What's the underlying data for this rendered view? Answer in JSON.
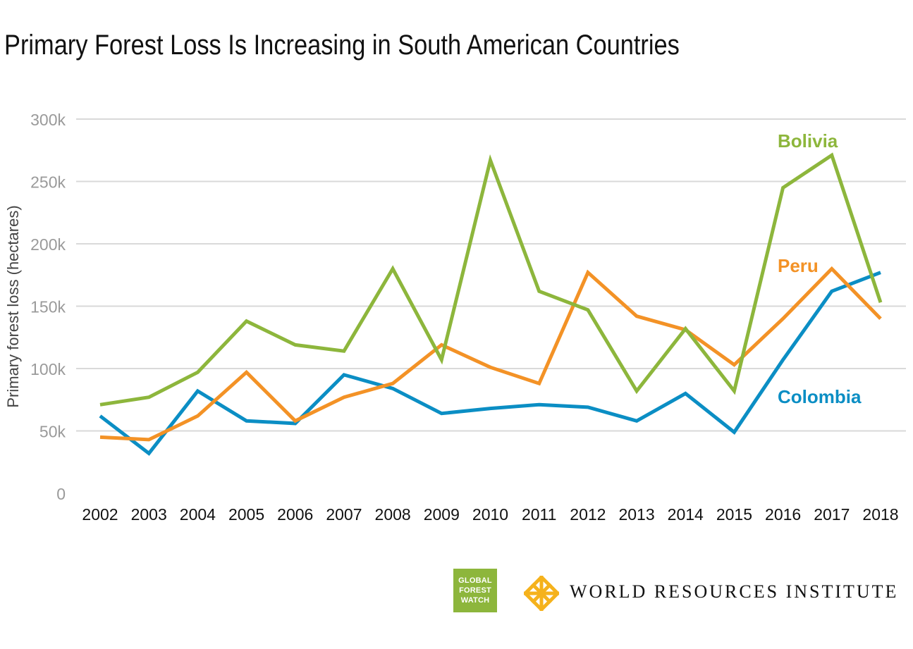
{
  "title": "Primary Forest Loss Is Increasing in South American Countries",
  "chart_data": {
    "type": "line",
    "title": "Primary Forest Loss Is Increasing in South American Countries",
    "xlabel": "",
    "ylabel": "Primary forest loss (hectares)",
    "ylim": [
      0,
      300000
    ],
    "yticks": [
      0,
      50000,
      100000,
      150000,
      200000,
      250000,
      300000
    ],
    "ytick_labels": [
      "0",
      "50k",
      "100k",
      "150k",
      "200k",
      "250k",
      "300k"
    ],
    "grid": true,
    "categories": [
      "2002",
      "2003",
      "2004",
      "2005",
      "2006",
      "2007",
      "2008",
      "2009",
      "2010",
      "2011",
      "2012",
      "2013",
      "2014",
      "2015",
      "2016",
      "2017",
      "2018"
    ],
    "series": [
      {
        "name": "Bolivia",
        "color": "#8db63c",
        "values": [
          71000,
          77000,
          97000,
          138000,
          119000,
          114000,
          180000,
          107000,
          267000,
          162000,
          147000,
          82000,
          132000,
          82000,
          245000,
          271000,
          153000
        ]
      },
      {
        "name": "Peru",
        "color": "#f39226",
        "values": [
          45000,
          43000,
          62000,
          97000,
          58000,
          77000,
          88000,
          119000,
          101000,
          88000,
          177000,
          142000,
          131000,
          103000,
          140000,
          180000,
          140000
        ]
      },
      {
        "name": "Colombia",
        "color": "#0b8ec4",
        "values": [
          62000,
          32000,
          82000,
          58000,
          56000,
          95000,
          84000,
          64000,
          68000,
          71000,
          69000,
          58000,
          80000,
          49000,
          107000,
          162000,
          177000
        ]
      }
    ]
  },
  "logos": {
    "gfw": {
      "line1": "GLOBAL",
      "line2": "FOREST",
      "line3": "WATCH",
      "color": "#8db63c"
    },
    "wri": {
      "text": "WORLD RESOURCES INSTITUTE",
      "color": "#f5b21c"
    }
  }
}
